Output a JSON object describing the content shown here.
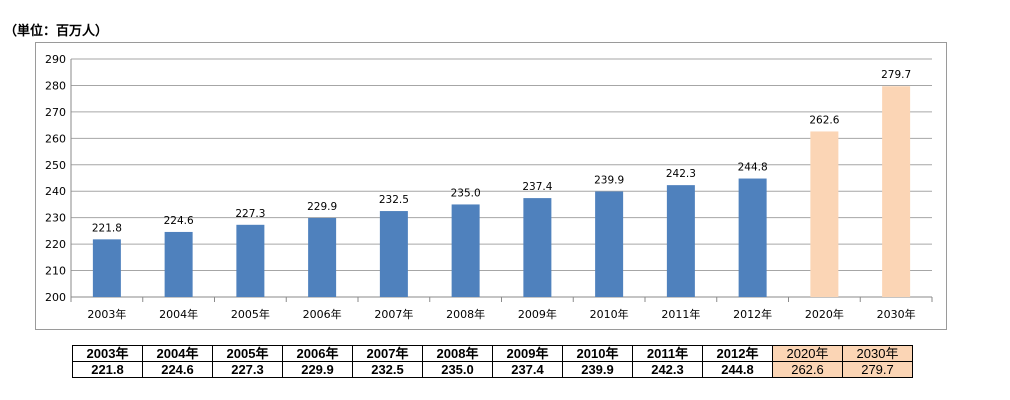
{
  "unit_label": "（単位：百万人）",
  "chart_data": {
    "type": "bar",
    "categories": [
      "2003年",
      "2004年",
      "2005年",
      "2006年",
      "2007年",
      "2008年",
      "2009年",
      "2010年",
      "2011年",
      "2012年",
      "2020年",
      "2030年"
    ],
    "values": [
      221.8,
      224.6,
      227.3,
      229.9,
      232.5,
      235.0,
      237.4,
      239.9,
      242.3,
      244.8,
      262.6,
      279.7
    ],
    "value_labels": [
      "221.8",
      "224.6",
      "227.3",
      "229.9",
      "232.5",
      "235.0",
      "237.4",
      "239.9",
      "242.3",
      "244.8",
      "262.6",
      "279.7"
    ],
    "ylim": [
      200,
      290
    ],
    "yticks": [
      200,
      210,
      220,
      230,
      240,
      250,
      260,
      270,
      280,
      290
    ],
    "grid": true,
    "colors": {
      "actual": "#4f81bd",
      "projected": "#fbd5b5"
    },
    "projected_categories": [
      "2020年",
      "2030年"
    ],
    "title": "",
    "xlabel": "",
    "ylabel": ""
  },
  "table": {
    "years": [
      "2003年",
      "2004年",
      "2005年",
      "2006年",
      "2007年",
      "2008年",
      "2009年",
      "2010年",
      "2011年",
      "2012年",
      "2020年",
      "2030年"
    ],
    "values": [
      "221.8",
      "224.6",
      "227.3",
      "229.9",
      "232.5",
      "235.0",
      "237.4",
      "239.9",
      "242.3",
      "244.8",
      "262.6",
      "279.7"
    ]
  }
}
